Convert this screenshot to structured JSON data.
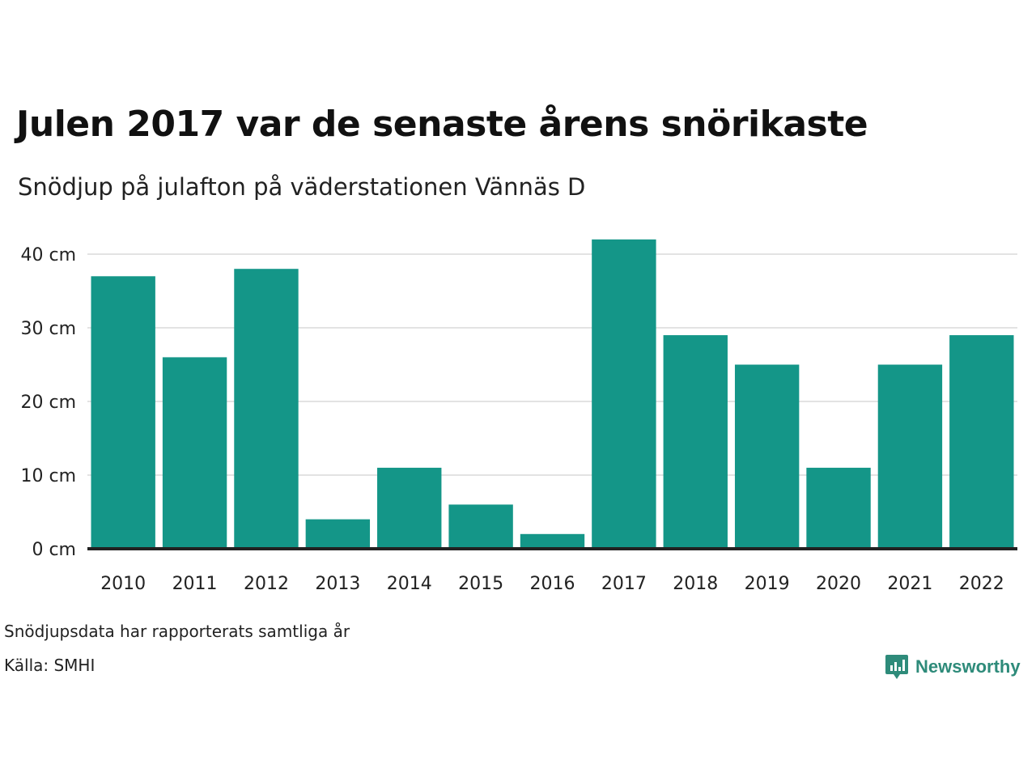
{
  "header": {
    "title": "Julen 2017 var de senaste årens snörikaste",
    "subtitle": "Snödjup på julafton på väderstationen Vännäs D"
  },
  "footer": {
    "note": "Snödjupsdata har rapporterats samtliga år",
    "source": "Källa: SMHI",
    "brand": "Newsworthy"
  },
  "colors": {
    "bar": "#149688",
    "brand": "#2e8b7a",
    "grid": "#e3e3e3",
    "baseline": "#222222"
  },
  "icons": {
    "brand_logo": "newsworthy-logo-icon"
  },
  "chart_data": {
    "type": "bar",
    "categories": [
      "2010",
      "2011",
      "2012",
      "2013",
      "2014",
      "2015",
      "2016",
      "2017",
      "2018",
      "2019",
      "2020",
      "2021",
      "2022"
    ],
    "values": [
      37,
      26,
      38,
      4,
      11,
      6,
      2,
      42,
      29,
      25,
      11,
      25,
      29
    ],
    "unit": "cm",
    "ylim": [
      0,
      40
    ],
    "yticks": [
      0,
      10,
      20,
      30,
      40
    ],
    "ytick_labels": [
      "0 cm",
      "10 cm",
      "20 cm",
      "30 cm",
      "40 cm"
    ],
    "grid": true,
    "legend": "none"
  }
}
